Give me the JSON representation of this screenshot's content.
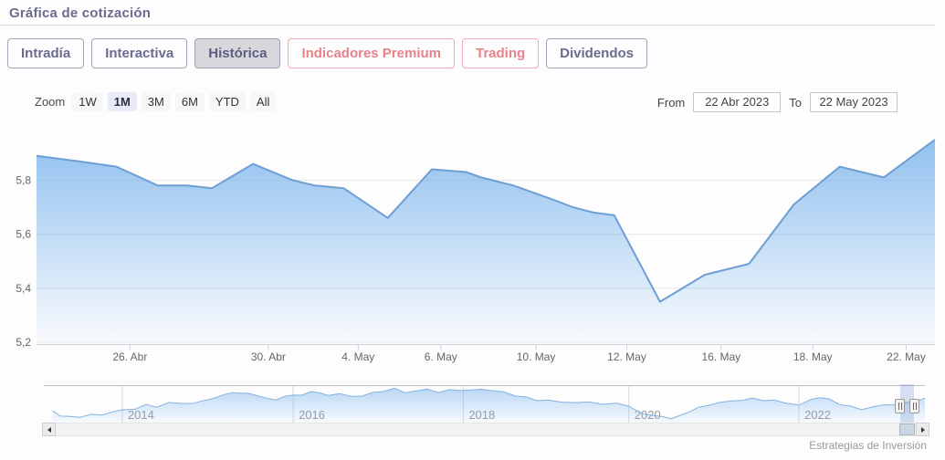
{
  "header": {
    "title": "Gráfica de cotización"
  },
  "tabs": [
    {
      "label": "Intradía",
      "variant": "purple",
      "selected": false
    },
    {
      "label": "Interactiva",
      "variant": "purple",
      "selected": false
    },
    {
      "label": "Histórica",
      "variant": "purple",
      "selected": true
    },
    {
      "label": "Indicadores Premium",
      "variant": "red",
      "selected": false
    },
    {
      "label": "Trading",
      "variant": "red",
      "selected": false
    },
    {
      "label": "Dividendos",
      "variant": "purple",
      "selected": false
    }
  ],
  "range_selector": {
    "zoom_label": "Zoom",
    "buttons": [
      "1W",
      "1M",
      "3M",
      "6M",
      "YTD",
      "All"
    ],
    "selected": "1M",
    "from_label": "From",
    "from_value": "22 Abr 2023",
    "to_label": "To",
    "to_value": "22 May 2023"
  },
  "chart_data": [
    {
      "type": "area",
      "role": "main-price-chart",
      "title": "",
      "xlabel": "",
      "ylabel": "",
      "ylim": [
        5.2,
        5.96
      ],
      "grid": "horizontal",
      "legend": "none",
      "yticks": [
        {
          "value": 5.2,
          "label": "5,2"
        },
        {
          "value": 5.4,
          "label": "5,4"
        },
        {
          "value": 5.6,
          "label": "5,6"
        },
        {
          "value": 5.8,
          "label": "5,8"
        }
      ],
      "xticks": [
        {
          "fx": 0.104,
          "label": "26. Abr"
        },
        {
          "fx": 0.258,
          "label": "30. Abr"
        },
        {
          "fx": 0.358,
          "label": "4. May"
        },
        {
          "fx": 0.45,
          "label": "6. May"
        },
        {
          "fx": 0.556,
          "label": "10. May"
        },
        {
          "fx": 0.657,
          "label": "12. May"
        },
        {
          "fx": 0.762,
          "label": "16. May"
        },
        {
          "fx": 0.864,
          "label": "18. May"
        },
        {
          "fx": 0.968,
          "label": "22. May"
        }
      ],
      "points": [
        [
          0.0,
          5.89
        ],
        [
          0.046,
          5.87
        ],
        [
          0.089,
          5.85
        ],
        [
          0.135,
          5.78
        ],
        [
          0.168,
          5.78
        ],
        [
          0.195,
          5.77
        ],
        [
          0.241,
          5.86
        ],
        [
          0.285,
          5.8
        ],
        [
          0.31,
          5.78
        ],
        [
          0.342,
          5.77
        ],
        [
          0.391,
          5.66
        ],
        [
          0.44,
          5.84
        ],
        [
          0.478,
          5.83
        ],
        [
          0.495,
          5.81
        ],
        [
          0.531,
          5.78
        ],
        [
          0.573,
          5.73
        ],
        [
          0.597,
          5.7
        ],
        [
          0.62,
          5.68
        ],
        [
          0.643,
          5.67
        ],
        [
          0.694,
          5.35
        ],
        [
          0.744,
          5.45
        ],
        [
          0.793,
          5.49
        ],
        [
          0.843,
          5.71
        ],
        [
          0.894,
          5.85
        ],
        [
          0.943,
          5.81
        ],
        [
          1.0,
          5.95
        ]
      ]
    },
    {
      "type": "area",
      "role": "navigator",
      "xticks": [
        {
          "fx": 0.089,
          "label": "2014"
        },
        {
          "fx": 0.283,
          "label": "2016"
        },
        {
          "fx": 0.476,
          "label": "2018"
        },
        {
          "fx": 0.664,
          "label": "2020"
        },
        {
          "fx": 0.857,
          "label": "2022"
        }
      ],
      "selected_range": {
        "from_fx": 0.972,
        "to_fx": 0.988
      },
      "points": [
        [
          0.01,
          0.34
        ],
        [
          0.019,
          0.2
        ],
        [
          0.028,
          0.16
        ],
        [
          0.041,
          0.18
        ],
        [
          0.054,
          0.21
        ],
        [
          0.066,
          0.24
        ],
        [
          0.079,
          0.3
        ],
        [
          0.089,
          0.37
        ],
        [
          0.104,
          0.4
        ],
        [
          0.116,
          0.5
        ],
        [
          0.128,
          0.47
        ],
        [
          0.142,
          0.55
        ],
        [
          0.155,
          0.58
        ],
        [
          0.168,
          0.53
        ],
        [
          0.18,
          0.63
        ],
        [
          0.193,
          0.71
        ],
        [
          0.205,
          0.79
        ],
        [
          0.214,
          0.89
        ],
        [
          0.223,
          0.82
        ],
        [
          0.232,
          0.87
        ],
        [
          0.242,
          0.76
        ],
        [
          0.253,
          0.71
        ],
        [
          0.263,
          0.66
        ],
        [
          0.274,
          0.74
        ],
        [
          0.283,
          0.82
        ],
        [
          0.293,
          0.76
        ],
        [
          0.303,
          0.92
        ],
        [
          0.313,
          0.84
        ],
        [
          0.323,
          0.79
        ],
        [
          0.336,
          0.84
        ],
        [
          0.348,
          0.74
        ],
        [
          0.361,
          0.79
        ],
        [
          0.373,
          0.84
        ],
        [
          0.385,
          0.92
        ],
        [
          0.398,
          0.97
        ],
        [
          0.41,
          0.87
        ],
        [
          0.423,
          0.92
        ],
        [
          0.435,
          0.95
        ],
        [
          0.448,
          0.89
        ],
        [
          0.46,
          0.92
        ],
        [
          0.472,
          0.95
        ],
        [
          0.485,
          0.92
        ],
        [
          0.497,
          0.97
        ],
        [
          0.51,
          0.92
        ],
        [
          0.522,
          0.87
        ],
        [
          0.535,
          0.79
        ],
        [
          0.547,
          0.71
        ],
        [
          0.56,
          0.66
        ],
        [
          0.572,
          0.63
        ],
        [
          0.588,
          0.6
        ],
        [
          0.603,
          0.58
        ],
        [
          0.619,
          0.58
        ],
        [
          0.634,
          0.55
        ],
        [
          0.65,
          0.53
        ],
        [
          0.664,
          0.5
        ],
        [
          0.673,
          0.32
        ],
        [
          0.681,
          0.26
        ],
        [
          0.691,
          0.21
        ],
        [
          0.702,
          0.16
        ],
        [
          0.712,
          0.13
        ],
        [
          0.722,
          0.18
        ],
        [
          0.733,
          0.34
        ],
        [
          0.743,
          0.42
        ],
        [
          0.753,
          0.5
        ],
        [
          0.767,
          0.58
        ],
        [
          0.779,
          0.61
        ],
        [
          0.792,
          0.66
        ],
        [
          0.804,
          0.68
        ],
        [
          0.817,
          0.66
        ],
        [
          0.829,
          0.63
        ],
        [
          0.841,
          0.58
        ],
        [
          0.857,
          0.5
        ],
        [
          0.871,
          0.66
        ],
        [
          0.881,
          0.74
        ],
        [
          0.891,
          0.66
        ],
        [
          0.903,
          0.55
        ],
        [
          0.916,
          0.45
        ],
        [
          0.928,
          0.39
        ],
        [
          0.941,
          0.45
        ],
        [
          0.953,
          0.5
        ],
        [
          0.966,
          0.53
        ],
        [
          0.978,
          0.55
        ],
        [
          0.988,
          0.61
        ],
        [
          1.0,
          0.68
        ]
      ]
    }
  ],
  "attribution": "Estrategias de Inversión",
  "theme": {
    "accent_purple": "#6b6b8f",
    "accent_red": "#e8818a",
    "selected_tab_bg": "#d7d7dc",
    "series_color": "#7cb5ec",
    "series_line": "#6e9fd3",
    "grid_color": "#e6e6e6",
    "axis_line_color": "#c8d0dc",
    "axis_label_color": "#666666",
    "nav_label_color": "#999999",
    "mask_color": "rgba(102,133,194,0.25)"
  }
}
